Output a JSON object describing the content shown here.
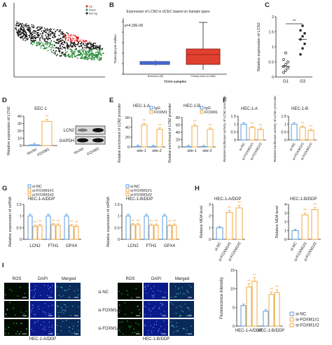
{
  "panels": {
    "A": {
      "letter": "A",
      "legend": [
        "Up",
        "Down",
        "Not sig"
      ]
    },
    "B": {
      "letter": "B",
      "title": "Expression of LCN2 in UCEC based on Sample types",
      "pvalue": "p=4.33E-08",
      "ylabel": "Transcript per million",
      "xlabel": "TCGA samples",
      "groups": [
        "Normal (n=35)",
        "Primary tumor (n=546)"
      ]
    },
    "C": {
      "letter": "C",
      "ylabel": "Relative expression of LCN2",
      "sig": "**",
      "categories": [
        "G1",
        "G3"
      ]
    },
    "D": {
      "letter": "D",
      "cell": "EEC-1",
      "ylabel": "Relative expression of LCN2",
      "sig": "**",
      "categories": [
        "Vector",
        "FOXM1"
      ],
      "blot_labels": [
        "LCN2",
        "GAPDH"
      ]
    },
    "E": {
      "letter": "E",
      "titles": [
        "HEC-1-A",
        "HEC-1-B"
      ],
      "legend": [
        "IgG",
        "FOXM1"
      ],
      "ylabel": "Relative enrichment of LCN2 promoter",
      "categories": [
        "site-1",
        "site-2"
      ]
    },
    "F": {
      "letter": "F",
      "titles": [
        "HEC-1-A",
        "HEC-1-B"
      ],
      "ylabel": "Relative luciferase activity of LCN2 promoter",
      "categories": [
        "si-NC",
        "si-FOXM1#1",
        "si-FOXM1#2"
      ]
    },
    "G": {
      "letter": "G",
      "legend": [
        "si-NC",
        "si-FOXM1#1",
        "si-FOXM1#2"
      ],
      "titles": [
        "HEC-1-A/DDP",
        "HEC-1-B/DDP"
      ],
      "ylabel": "Relative expression of mRNA",
      "categories": [
        "LCN2",
        "FTH1",
        "GPX4"
      ]
    },
    "H": {
      "letter": "H",
      "titles": [
        "HEC-1-A/DDP",
        "HEC-1-B/DDP"
      ],
      "ylabel": "Relative MDA level",
      "categories": [
        "si-NC",
        "si-FOXM1#1",
        "si-FOXM1#2"
      ]
    },
    "I": {
      "letter": "I",
      "col_headers": [
        "ROS",
        "DAPI",
        "Merged"
      ],
      "row_labels": [
        "si-NC",
        "si-FOXM1#1",
        "si-FOXM1#2"
      ],
      "group_labels": [
        "HEC-1-A/DDP",
        "HEC-1-B/DDP"
      ],
      "ylabel": "Fluorescence intensity",
      "legend": [
        "si-NC",
        "si-FOXM1#1",
        "si-FOXM1#2"
      ]
    }
  },
  "colors": {
    "blue": "#4a90d9",
    "orange": "#f0a030",
    "red": "#e02020",
    "green": "#2e8b3e",
    "black": "#222222"
  },
  "chart_data": [
    {
      "panel": "C",
      "type": "scatter",
      "categories": [
        "G1",
        "G3"
      ],
      "series": [
        {
          "values": [
            0.35,
            1.25
          ]
        }
      ],
      "ylim": [
        0,
        2.0
      ],
      "yticks": [
        0.0,
        0.5,
        1.0,
        1.5,
        2.0
      ]
    },
    {
      "panel": "D",
      "type": "bar",
      "categories": [
        "Vector",
        "FOXM1"
      ],
      "values": [
        1,
        33
      ],
      "ylim": [
        0,
        40
      ],
      "yticks": [
        0,
        10,
        20,
        30,
        40
      ]
    },
    {
      "panel": "E-A",
      "type": "bar",
      "categories": [
        "site-1",
        "site-2"
      ],
      "series": [
        {
          "name": "IgG",
          "values": [
            1,
            1
          ]
        },
        {
          "name": "FOXM1",
          "values": [
            45,
            36
          ]
        }
      ],
      "ylim": [
        0,
        60
      ],
      "yticks": [
        0,
        20,
        40,
        60
      ]
    },
    {
      "panel": "E-B",
      "type": "bar",
      "categories": [
        "site-1",
        "site-2"
      ],
      "series": [
        {
          "name": "IgG",
          "values": [
            1,
            1
          ]
        },
        {
          "name": "FOXM1",
          "values": [
            57,
            48
          ]
        }
      ],
      "ylim": [
        0,
        80
      ],
      "yticks": [
        0,
        20,
        40,
        60,
        80
      ]
    },
    {
      "panel": "F-A",
      "type": "bar",
      "categories": [
        "si-NC",
        "si-FOXM1#1",
        "si-FOXM1#2"
      ],
      "values": [
        1.0,
        0.78,
        0.66
      ],
      "ylim": [
        0,
        1.5
      ],
      "yticks": [
        0.0,
        0.5,
        1.0,
        1.5
      ]
    },
    {
      "panel": "F-B",
      "type": "bar",
      "categories": [
        "si-NC",
        "si-FOXM1#1",
        "si-FOXM1#2"
      ],
      "values": [
        1.0,
        0.8,
        0.6
      ],
      "ylim": [
        0,
        1.5
      ],
      "yticks": [
        0.0,
        0.5,
        1.0,
        1.5
      ]
    },
    {
      "panel": "G-A",
      "type": "bar",
      "categories": [
        "LCN2",
        "FTH1",
        "GPX4"
      ],
      "series": [
        {
          "name": "si-NC",
          "values": [
            1.0,
            1.0,
            1.0
          ]
        },
        {
          "name": "si-FOXM1#1",
          "values": [
            0.55,
            0.62,
            0.58
          ]
        },
        {
          "name": "si-FOXM1#2",
          "values": [
            0.58,
            0.6,
            0.55
          ]
        }
      ],
      "ylim": [
        0,
        1.5
      ],
      "yticks": [
        0.0,
        0.5,
        1.0,
        1.5
      ]
    },
    {
      "panel": "G-B",
      "type": "bar",
      "categories": [
        "LCN2",
        "FTH1",
        "GPX4"
      ],
      "series": [
        {
          "name": "si-NC",
          "values": [
            1.0,
            1.0,
            1.0
          ]
        },
        {
          "name": "si-FOXM1#1",
          "values": [
            0.62,
            0.6,
            0.58
          ]
        },
        {
          "name": "si-FOXM1#2",
          "values": [
            0.62,
            0.6,
            0.6
          ]
        }
      ],
      "ylim": [
        0,
        1.5
      ],
      "yticks": [
        0.0,
        0.5,
        1.0,
        1.5
      ]
    },
    {
      "panel": "H-A",
      "type": "bar",
      "categories": [
        "si-NC",
        "si-FOXM1#1",
        "si-FOXM1#2"
      ],
      "values": [
        1.0,
        2.3,
        2.7
      ],
      "ylim": [
        0,
        3
      ],
      "yticks": [
        0,
        1,
        2,
        3
      ]
    },
    {
      "panel": "H-B",
      "type": "bar",
      "categories": [
        "si-NC",
        "si-FOXM1#1",
        "si-FOXM1#2"
      ],
      "values": [
        1.0,
        2.8,
        3.4
      ],
      "ylim": [
        0,
        4
      ],
      "yticks": [
        0,
        1,
        2,
        3,
        4
      ]
    },
    {
      "panel": "I",
      "type": "bar",
      "categories": [
        "HEC-1-A/DDP",
        "HEC-1-B/DDP"
      ],
      "series": [
        {
          "name": "si-NC",
          "values": [
            5.5,
            4.0
          ]
        },
        {
          "name": "si-FOXM1#1",
          "values": [
            10.5,
            8.5
          ]
        },
        {
          "name": "si-FOXM1#2",
          "values": [
            12.0,
            9.0
          ]
        }
      ],
      "ylim": [
        0,
        15
      ],
      "yticks": [
        0,
        5,
        10,
        15
      ]
    }
  ]
}
